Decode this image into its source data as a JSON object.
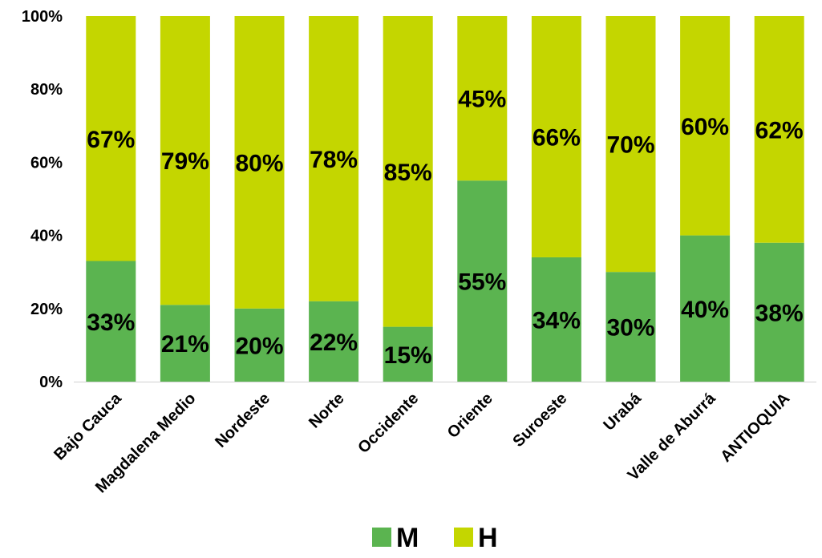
{
  "chart_data": {
    "type": "bar",
    "stacked": "percent",
    "title": "",
    "xlabel": "",
    "ylabel": "",
    "ylim": [
      0,
      100
    ],
    "y_ticks": [
      "0%",
      "20%",
      "40%",
      "60%",
      "80%",
      "100%"
    ],
    "grid": false,
    "legend_position": "bottom",
    "categories": [
      "Bajo Cauca",
      "Magdalena Medio",
      "Nordeste",
      "Norte",
      "Occidente",
      "Oriente",
      "Suroeste",
      "Urabá",
      "Valle de Aburrá",
      "ANTIOQUIA"
    ],
    "series": [
      {
        "name": "M",
        "color": "#5bb450",
        "values": [
          33,
          21,
          20,
          22,
          15,
          55,
          34,
          30,
          40,
          38
        ],
        "labels": [
          "33%",
          "21%",
          "20%",
          "22%",
          "15%",
          "55%",
          "34%",
          "30%",
          "40%",
          "38%"
        ]
      },
      {
        "name": "H",
        "color": "#c4d600",
        "values": [
          67,
          79,
          80,
          78,
          85,
          45,
          66,
          70,
          60,
          62
        ],
        "labels": [
          "67%",
          "79%",
          "80%",
          "78%",
          "85%",
          "45%",
          "66%",
          "70%",
          "60%",
          "62%"
        ]
      }
    ]
  }
}
